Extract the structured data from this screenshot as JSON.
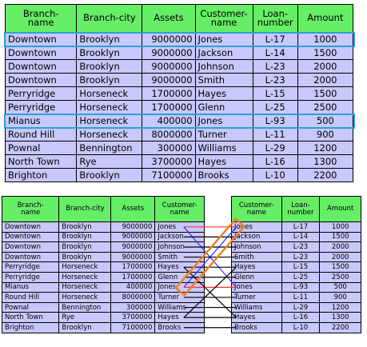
{
  "top_table": {
    "headers": [
      "Branch-\nname",
      "Branch-city",
      "Assets",
      "Customer-\nname",
      "Loan-\nnumber",
      "Amount"
    ],
    "rows": [
      [
        "Downtown",
        "Brooklyn",
        "9000000",
        "Jones",
        "L-17",
        "1000"
      ],
      [
        "Downtown",
        "Brooklyn",
        "9000000",
        "Jackson",
        "L-14",
        "1500"
      ],
      [
        "Downtown",
        "Brooklyn",
        "9000000",
        "Johnson",
        "L-23",
        "2000"
      ],
      [
        "Downtown",
        "Brooklyn",
        "9000000",
        "Smith",
        "L-23",
        "2000"
      ],
      [
        "Perryridge",
        "Horseneck",
        "1700000",
        "Hayes",
        "L-15",
        "1500"
      ],
      [
        "Perryridge",
        "Horseneck",
        "1700000",
        "Glenn",
        "L-25",
        "2500"
      ],
      [
        "Mianus",
        "Horseneck",
        "400000",
        "Jones",
        "L-93",
        "500"
      ],
      [
        "Round Hill",
        "Horseneck",
        "8000000",
        "Turner",
        "L-11",
        "900"
      ],
      [
        "Pownal",
        "Bennington",
        "300000",
        "Williams",
        "L-29",
        "1200"
      ],
      [
        "North Town",
        "Rye",
        "3700000",
        "Hayes",
        "L-16",
        "1300"
      ],
      [
        "Brighton",
        "Brooklyn",
        "7100000",
        "Brooks",
        "L-10",
        "2200"
      ]
    ],
    "highlighted_rows": [
      0,
      6
    ]
  },
  "left_table": {
    "headers": [
      "Branch-\nname",
      "Branch-city",
      "Assets",
      "Customer-\nname"
    ],
    "rows": [
      [
        "Downtown",
        "Brooklyn",
        "9000000",
        "Jones"
      ],
      [
        "Downtown",
        "Brooklyn",
        "9000000",
        "Jackson"
      ],
      [
        "Downtown",
        "Brooklyn",
        "9000000",
        "Johnson"
      ],
      [
        "Downtown",
        "Brooklyn",
        "9000000",
        "Smith"
      ],
      [
        "Perryridge",
        "Horseneck",
        "1700000",
        "Hayes"
      ],
      [
        "Perryridge",
        "Horseneck",
        "1700000",
        "Glenn"
      ],
      [
        "Mianus",
        "Horseneck",
        "400000",
        "Jones"
      ],
      [
        "Round Hill",
        "Horseneck",
        "8000000",
        "Turner"
      ],
      [
        "Pownal",
        "Bennington",
        "300000",
        "Williams"
      ],
      [
        "North Town",
        "Rye",
        "3700000",
        "Hayes"
      ],
      [
        "Brighton",
        "Brooklyn",
        "7100000",
        "Brooks"
      ]
    ]
  },
  "right_table": {
    "headers": [
      "Customer-\nname",
      "Loan-\nnumber",
      "Amount"
    ],
    "rows": [
      [
        "Jones",
        "L-17",
        "1000"
      ],
      [
        "Jackson",
        "L-14",
        "1500"
      ],
      [
        "Johnson",
        "L-23",
        "2000"
      ],
      [
        "Smith",
        "L-23",
        "2000"
      ],
      [
        "Hayes",
        "L-15",
        "1500"
      ],
      [
        "Glenn",
        "L-25",
        "2500"
      ],
      [
        "Jones",
        "L-93",
        "500"
      ],
      [
        "Turner",
        "L-11",
        "900"
      ],
      [
        "Williams",
        "L-29",
        "1200"
      ],
      [
        "Hayes",
        "L-16",
        "1300"
      ],
      [
        "Brooks",
        "L-10",
        "2200"
      ]
    ]
  },
  "connections": [
    {
      "from": 0,
      "to": 0,
      "color": "#ff3333"
    },
    {
      "from": 0,
      "to": 6,
      "color": "#3333ff"
    },
    {
      "from": 6,
      "to": 0,
      "color": "#3333ff"
    },
    {
      "from": 6,
      "to": 6,
      "color": "#ff3333"
    },
    {
      "from": 1,
      "to": 1,
      "color": "#000000"
    },
    {
      "from": 2,
      "to": 2,
      "color": "#000000"
    },
    {
      "from": 3,
      "to": 3,
      "color": "#000000"
    },
    {
      "from": 4,
      "to": 4,
      "color": "#000000"
    },
    {
      "from": 4,
      "to": 9,
      "color": "#000000"
    },
    {
      "from": 9,
      "to": 4,
      "color": "#000000"
    },
    {
      "from": 9,
      "to": 9,
      "color": "#000000"
    },
    {
      "from": 5,
      "to": 5,
      "color": "#000000"
    },
    {
      "from": 7,
      "to": 7,
      "color": "#000000"
    },
    {
      "from": 8,
      "to": 8,
      "color": "#000000"
    },
    {
      "from": 10,
      "to": 10,
      "color": "#000000"
    }
  ],
  "colors": {
    "header_bg": "#66ee66",
    "cell_bg": "#c8c8fc",
    "row_highlight": "#2aa0d8",
    "match_highlight": "#f08020"
  }
}
